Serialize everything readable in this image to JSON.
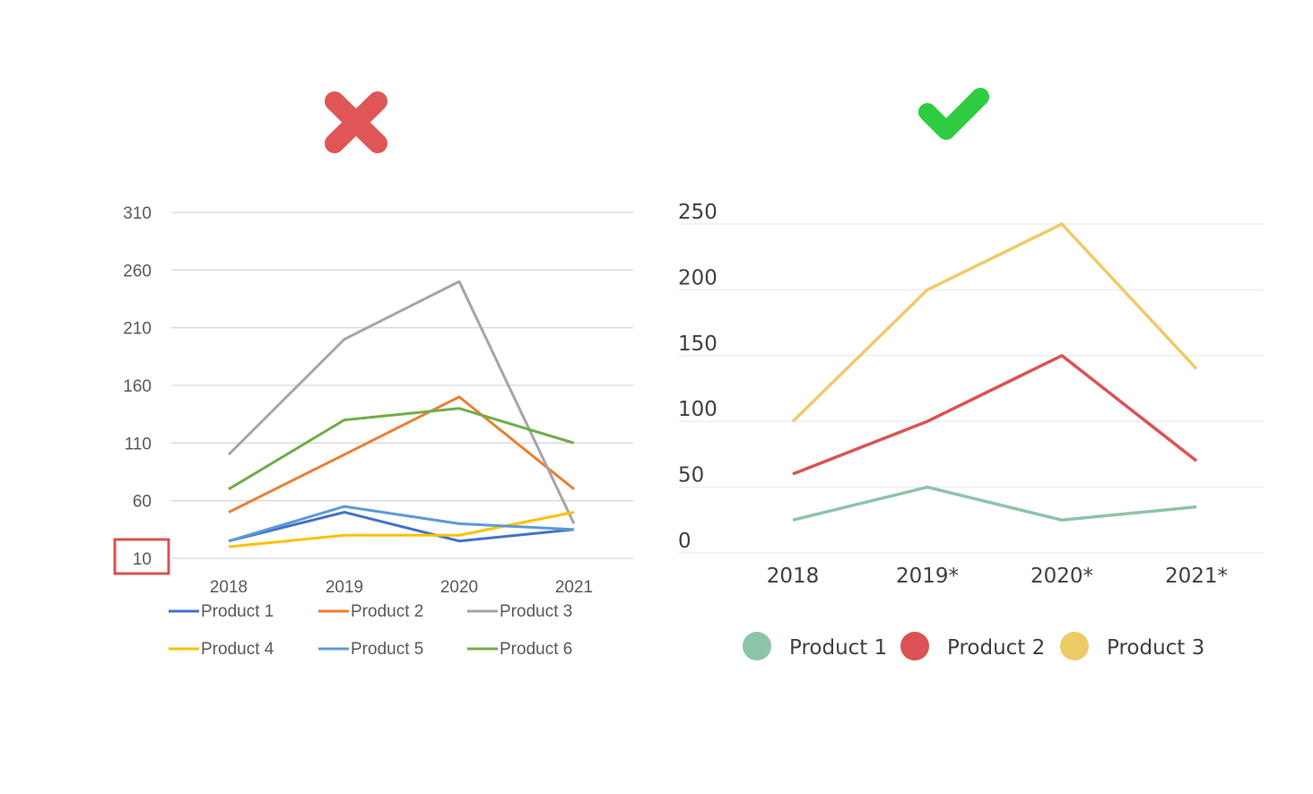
{
  "verdicts": {
    "left": {
      "icon": "cross-icon",
      "color": "#E05555"
    },
    "right": {
      "icon": "check-icon",
      "color": "#2ECC40"
    }
  },
  "chart_data": [
    {
      "type": "line",
      "categories": [
        "2018",
        "2019",
        "2020",
        "2021"
      ],
      "ylim": [
        10,
        310
      ],
      "yticks": [
        "10",
        "60",
        "110",
        "160",
        "210",
        "260",
        "310"
      ],
      "highlighted_tick": "10",
      "highlight_color": "#D9534F",
      "grid": true,
      "legend": "bottom",
      "series": [
        {
          "name": "Product 1",
          "color": "#4472C4",
          "values": [
            25,
            50,
            25,
            35
          ]
        },
        {
          "name": "Product 2",
          "color": "#ED7D31",
          "values": [
            50,
            100,
            150,
            70
          ]
        },
        {
          "name": "Product 3",
          "color": "#A5A5A5",
          "values": [
            100,
            200,
            250,
            40
          ]
        },
        {
          "name": "Product 4",
          "color": "#FFC000",
          "values": [
            20,
            30,
            30,
            50
          ]
        },
        {
          "name": "Product 5",
          "color": "#5B9BD5",
          "values": [
            25,
            55,
            40,
            35
          ]
        },
        {
          "name": "Product 6",
          "color": "#70AD47",
          "values": [
            70,
            130,
            140,
            110
          ]
        }
      ]
    },
    {
      "type": "line",
      "categories": [
        "2018",
        "2019*",
        "2020*",
        "2021*"
      ],
      "ylim": [
        0,
        250
      ],
      "yticks": [
        "0",
        "50",
        "100",
        "150",
        "200",
        "250"
      ],
      "grid": true,
      "legend": "bottom",
      "series": [
        {
          "name": "Product 1",
          "color": "#8DC4A7",
          "values": [
            25,
            50,
            25,
            35
          ]
        },
        {
          "name": "Product 2",
          "color": "#DC5254",
          "values": [
            60,
            100,
            150,
            70
          ]
        },
        {
          "name": "Product 3",
          "color": "#EFCB68",
          "values": [
            100,
            200,
            250,
            140
          ]
        }
      ]
    }
  ]
}
